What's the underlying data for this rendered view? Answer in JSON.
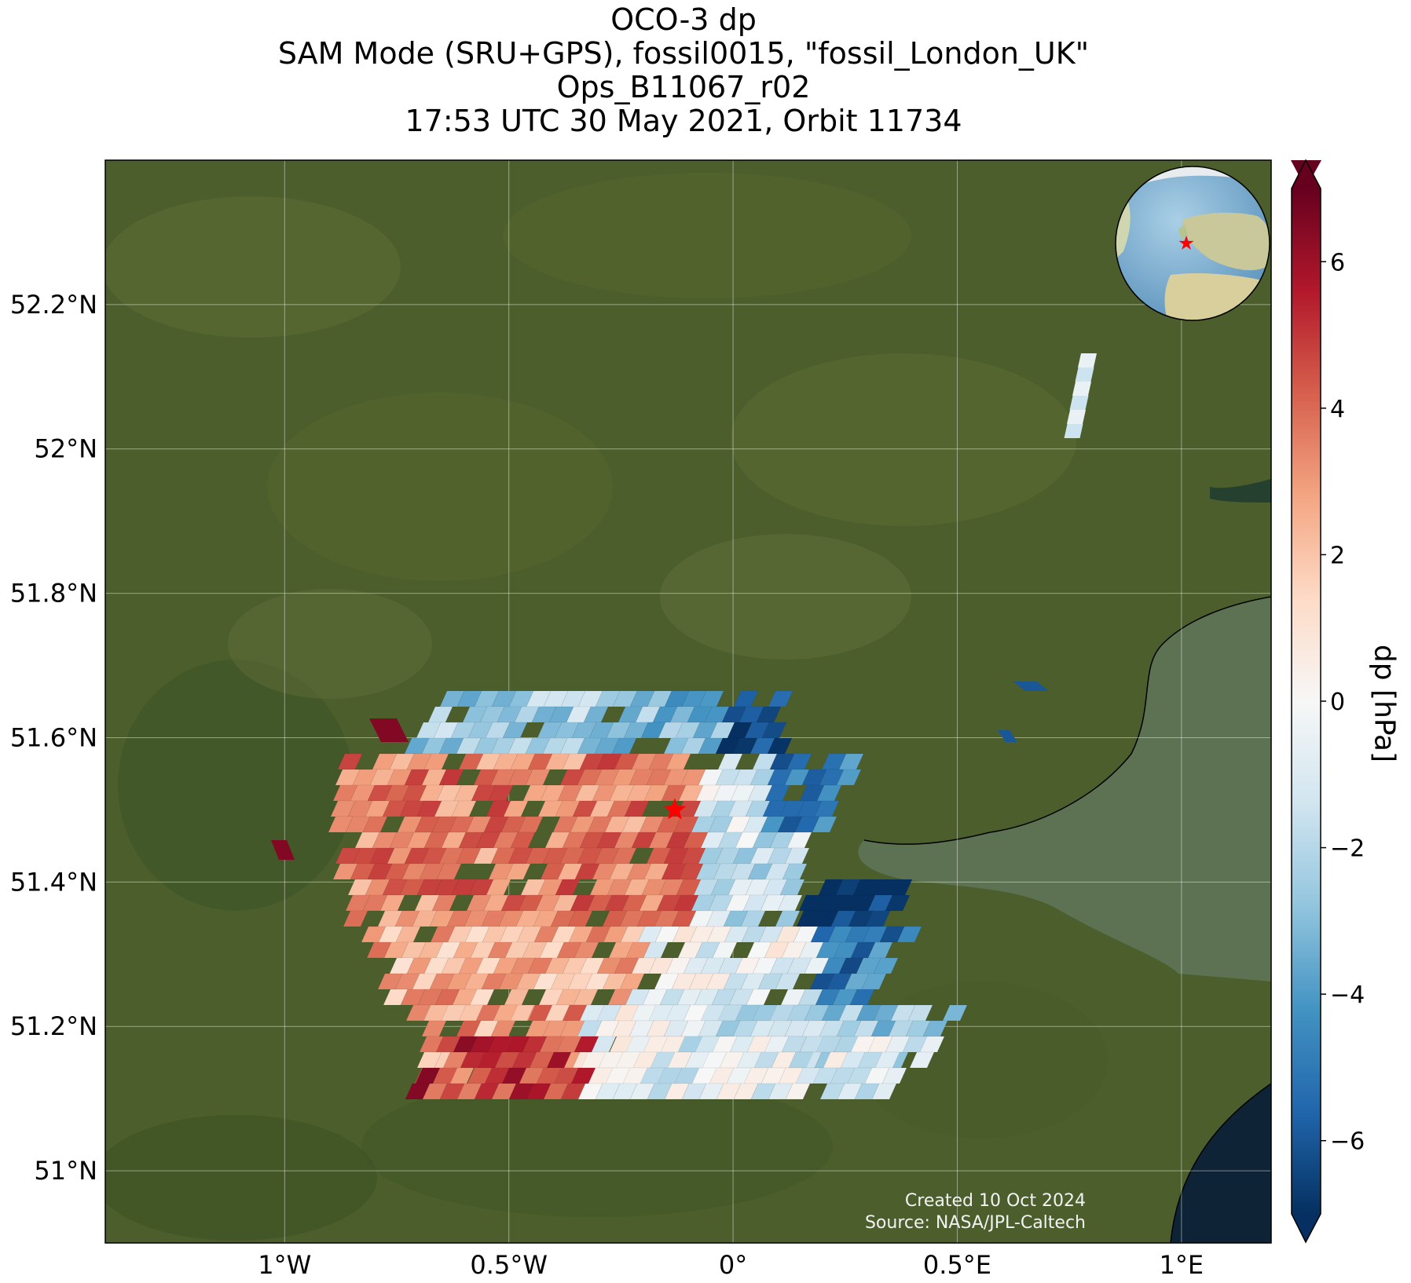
{
  "title": {
    "line1": "OCO-3 dp",
    "line2": "SAM Mode (SRU+GPS), fossil0015, \"fossil_London_UK\"",
    "line3": "Ops_B11067_r02",
    "line4": "17:53 UTC 30 May 2021, Orbit 11734"
  },
  "map": {
    "extent": {
      "lon_min": -1.4,
      "lon_max": 1.2,
      "lat_min": 50.9,
      "lat_max": 52.4
    },
    "background": "satellite imagery",
    "grid": true,
    "lon_ticks": [
      {
        "value": -1.0,
        "label": "1°W"
      },
      {
        "value": -0.5,
        "label": "0.5°W"
      },
      {
        "value": 0.0,
        "label": "0°"
      },
      {
        "value": 0.5,
        "label": "0.5°E"
      },
      {
        "value": 1.0,
        "label": "1°E"
      }
    ],
    "lat_ticks": [
      {
        "value": 51.0,
        "label": "51°N"
      },
      {
        "value": 51.2,
        "label": "51.2°N"
      },
      {
        "value": 51.4,
        "label": "51.4°N"
      },
      {
        "value": 51.6,
        "label": "51.6°N"
      },
      {
        "value": 51.8,
        "label": "51.8°N"
      },
      {
        "value": 52.0,
        "label": "52°N"
      },
      {
        "value": 52.2,
        "label": "52.2°N"
      }
    ],
    "target_marker": {
      "lon": -0.13,
      "lat": 51.5,
      "symbol": "star",
      "color": "#ff0000"
    },
    "inset_globe": {
      "center_lat": 51.5,
      "center_lon": -0.1,
      "marker": "star"
    }
  },
  "colorbar": {
    "label": "dp [hPa]",
    "vmin": -7,
    "vmax": 7,
    "cmap": "RdBu_r",
    "extend": "both",
    "ticks": [
      {
        "value": 6,
        "label": "6"
      },
      {
        "value": 4,
        "label": "4"
      },
      {
        "value": 2,
        "label": "2"
      },
      {
        "value": 0,
        "label": "0"
      },
      {
        "value": -2,
        "label": "−2"
      },
      {
        "value": -4,
        "label": "−4"
      },
      {
        "value": -6,
        "label": "−6"
      }
    ]
  },
  "credits": {
    "created": "Created 10 Oct 2024",
    "source": "Source: NASA/JPL-Caltech"
  }
}
